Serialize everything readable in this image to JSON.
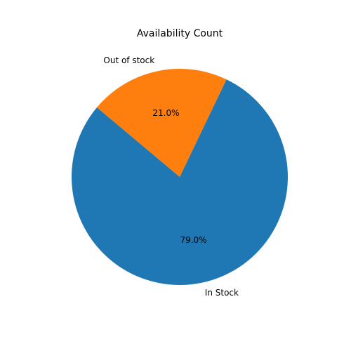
{
  "chart_data": {
    "type": "pie",
    "title": "Availability Count",
    "start_angle_deg": 140,
    "direction": "counterclockwise",
    "slices": [
      {
        "label": "In Stock",
        "value": 79.0,
        "pct_label": "79.0%",
        "color": "#1f77b4"
      },
      {
        "label": "Out of stock",
        "value": 21.0,
        "pct_label": "21.0%",
        "color": "#ff7f0e"
      }
    ],
    "legend": "none",
    "grid": false
  }
}
